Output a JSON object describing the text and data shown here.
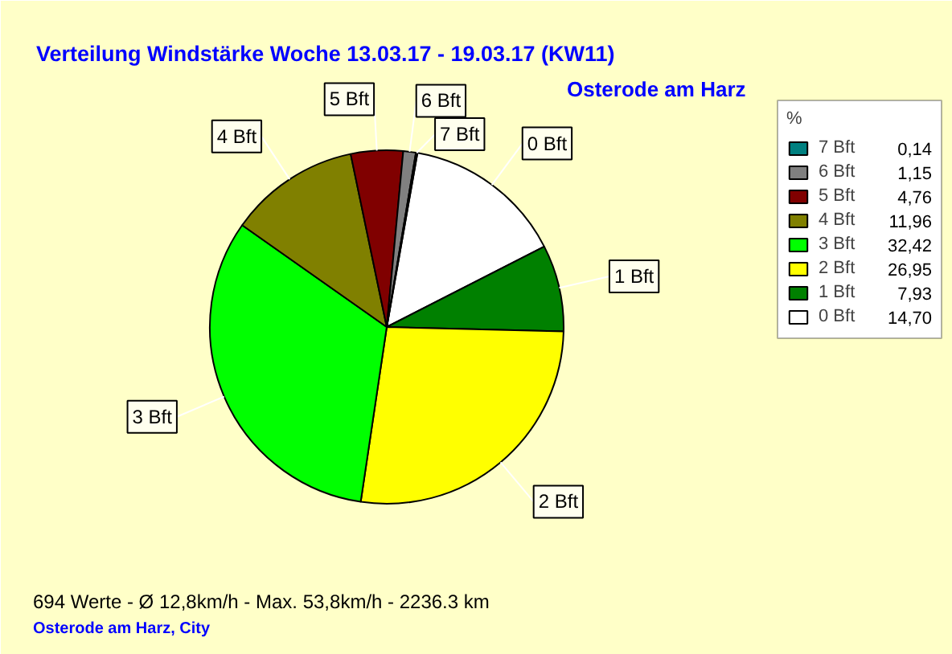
{
  "chart_data": {
    "type": "pie",
    "title": "Verteilung Windstärke  Woche 13.03.17 - 19.03.17 (KW11)",
    "subtitle": "Osterode am Harz",
    "categories": [
      "0 Bft",
      "1 Bft",
      "2 Bft",
      "3 Bft",
      "4 Bft",
      "5 Bft",
      "6 Bft",
      "7 Bft"
    ],
    "values": [
      14.7,
      7.93,
      26.95,
      32.42,
      11.96,
      4.76,
      1.15,
      0.14
    ],
    "value_labels": [
      "14,70",
      "7,93",
      "26,95",
      "32,42",
      "11,96",
      "4,76",
      "1,15",
      "0,14"
    ],
    "colors": [
      "#ffffff",
      "#008000",
      "#ffff00",
      "#00ff00",
      "#808000",
      "#800000",
      "#808080",
      "#008080"
    ],
    "legend_title": "%",
    "legend": "top right",
    "annotations": [
      "694 Werte  -  Ø 12,8km/h  -  Max. 53,8km/h  -  2236.3 km",
      "Osterode am Harz, City"
    ]
  }
}
